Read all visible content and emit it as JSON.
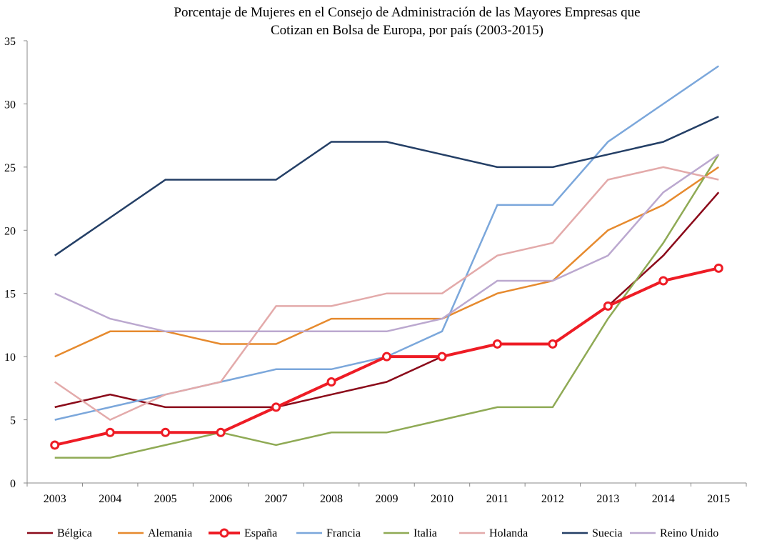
{
  "chart_data": {
    "type": "line",
    "title": [
      "Porcentaje de Mujeres en el Consejo de Administración de las Mayores Empresas que",
      "Cotizan en Bolsa de Europa, por país  (2003-2015)"
    ],
    "xlabel": "",
    "ylabel": "",
    "categories": [
      "2003",
      "2004",
      "2005",
      "2006",
      "2007",
      "2008",
      "2009",
      "2010",
      "2011",
      "2012",
      "2013",
      "2014",
      "2015"
    ],
    "ylim": [
      0,
      35
    ],
    "yticks": [
      0,
      5,
      10,
      15,
      20,
      25,
      30,
      35
    ],
    "grid": false,
    "legend_position": "bottom",
    "series": [
      {
        "name": "Bélgica",
        "color": "#8B0A1A",
        "markers": false,
        "values": [
          6,
          7,
          6,
          6,
          6,
          7,
          8,
          10,
          11,
          11,
          14,
          18,
          23
        ]
      },
      {
        "name": "Alemania",
        "color": "#E68A2E",
        "markers": false,
        "values": [
          10,
          12,
          12,
          11,
          11,
          13,
          13,
          13,
          15,
          16,
          20,
          22,
          25
        ]
      },
      {
        "name": "España",
        "color": "#EE1C25",
        "markers": true,
        "values": [
          3,
          4,
          4,
          4,
          6,
          8,
          10,
          10,
          11,
          11,
          14,
          16,
          17
        ]
      },
      {
        "name": "Francia",
        "color": "#7BA7DB",
        "markers": false,
        "values": [
          5,
          6,
          7,
          8,
          9,
          9,
          10,
          12,
          22,
          22,
          27,
          30,
          33
        ]
      },
      {
        "name": "Italia",
        "color": "#8FAA55",
        "markers": false,
        "values": [
          2,
          2,
          3,
          4,
          3,
          4,
          4,
          5,
          6,
          6,
          13,
          19,
          26
        ]
      },
      {
        "name": "Holanda",
        "color": "#E3AAAA",
        "markers": false,
        "values": [
          8,
          5,
          7,
          8,
          14,
          14,
          15,
          15,
          18,
          19,
          24,
          25,
          24
        ]
      },
      {
        "name": "Suecia",
        "color": "#243F66",
        "markers": false,
        "values": [
          18,
          21,
          24,
          24,
          24,
          27,
          27,
          26,
          25,
          25,
          26,
          27,
          29
        ]
      },
      {
        "name": "Reino Unido",
        "color": "#BBA8CF",
        "markers": false,
        "values": [
          15,
          13,
          12,
          12,
          12,
          12,
          12,
          13,
          16,
          16,
          18,
          23,
          26
        ]
      }
    ]
  }
}
